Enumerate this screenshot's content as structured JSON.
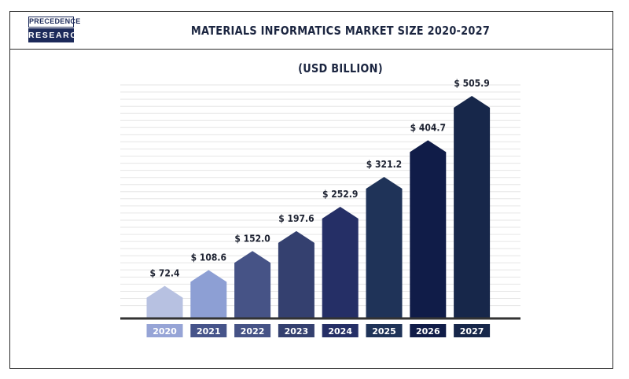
{
  "logo": {
    "top": "PRECEDENCE",
    "bottom": "RESEARCH"
  },
  "chart_data": {
    "type": "bar",
    "title": "MATERIALS INFORMATICS MARKET SIZE 2020-2027 (USD BILLION)",
    "categories": [
      "2020",
      "2021",
      "2022",
      "2023",
      "2024",
      "2025",
      "2026",
      "2027"
    ],
    "values": [
      72.4,
      108.6,
      152.0,
      197.6,
      252.9,
      321.2,
      404.7,
      505.9
    ],
    "value_labels": [
      "$ 72.4",
      "$ 108.6",
      "$ 152.0",
      "$ 197.6",
      "$ 252.9",
      "$ 321.2",
      "$ 404.7",
      "$ 505.9"
    ],
    "colors": [
      "#b7c1e1",
      "#8d9fd4",
      "#465386",
      "#34406f",
      "#252f66",
      "#1f3358",
      "#101c48",
      "#17274a"
    ],
    "label_colors": [
      "#96a4d6",
      "#46548a",
      "#465386",
      "#34406f",
      "#252f66",
      "#1f3358",
      "#101c48",
      "#17274a"
    ],
    "grid": true,
    "xlabel": "",
    "ylabel": ""
  }
}
